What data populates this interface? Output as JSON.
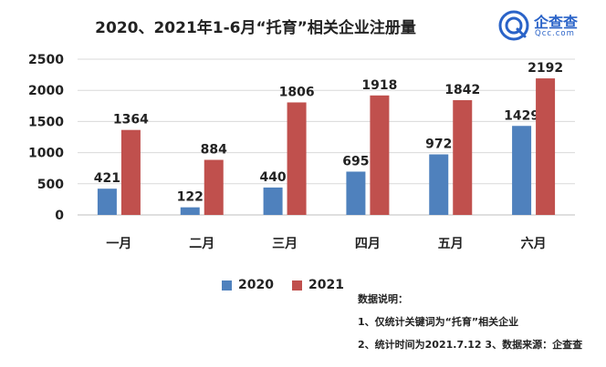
{
  "title": "2020、2021年1-6月“托育”相关企业注册量",
  "logo": {
    "name": "企查查",
    "url": "Qcc.com",
    "icon": "logo-q-icon"
  },
  "colors": {
    "s2020": "#4f81bd",
    "s2021": "#c0504d",
    "grid": "#d9d9d9",
    "axis": "#bfbfbf"
  },
  "chart_data": {
    "type": "bar",
    "title": "2020、2021年1-6月“托育”相关企业注册量",
    "categories": [
      "一月",
      "二月",
      "三月",
      "四月",
      "五月",
      "六月"
    ],
    "series": [
      {
        "name": "2020",
        "values": [
          421,
          122,
          440,
          695,
          972,
          1429
        ]
      },
      {
        "name": "2021",
        "values": [
          1364,
          884,
          1806,
          1918,
          1842,
          2192
        ]
      }
    ],
    "ylim": [
      0,
      2500
    ],
    "yticks": [
      0,
      500,
      1000,
      1500,
      2000,
      2500
    ],
    "grid": true,
    "legend": "bottom",
    "data_labels": true
  },
  "notes": {
    "heading": "数据说明：",
    "line1": "1、仅统计关键词为“托育”相关企业",
    "line2": "2、统计时间为2021.7.12 3、数据来源：企查查"
  }
}
